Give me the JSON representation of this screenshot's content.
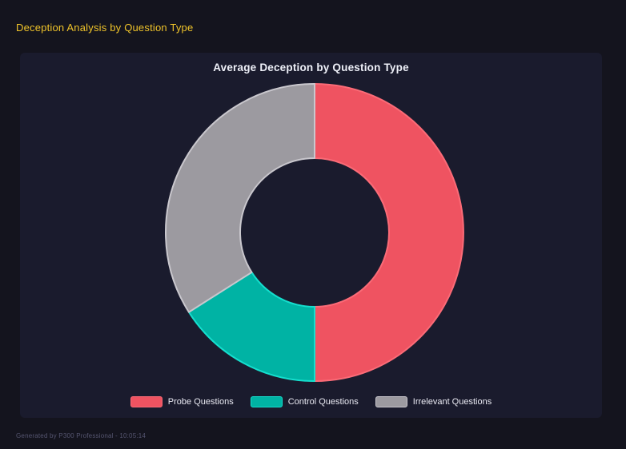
{
  "page": {
    "title": "Deception Analysis by Question Type",
    "footer": "Generated by P300 Professional - 10:05:14"
  },
  "colors": {
    "page_bg": "#14141e",
    "panel_bg": "#1a1b2d",
    "header_title": "#f0c42a",
    "chart_title": "#eef0f8",
    "legend_text": "#e9e9f2",
    "footer_text": "#555570"
  },
  "chart_data": {
    "type": "pie",
    "subtype": "donut",
    "title": "Average Deception by Question Type",
    "legend_position": "bottom",
    "cutout_percent": 50,
    "start_angle_deg": 0,
    "categories": [
      "Probe Questions",
      "Control Questions",
      "Irrelevant Questions"
    ],
    "values_percent": [
      50,
      16,
      34
    ],
    "segments": [
      {
        "label": "Probe Questions",
        "percent": 50,
        "color": "#ef5361",
        "border_color": "#fb6b77"
      },
      {
        "label": "Control Questions",
        "percent": 16,
        "color": "#00b3a4",
        "border_color": "#15dfce"
      },
      {
        "label": "Irrelevant Questions",
        "percent": 34,
        "color": "#9c9aa0",
        "border_color": "#c9c7cd"
      }
    ]
  }
}
